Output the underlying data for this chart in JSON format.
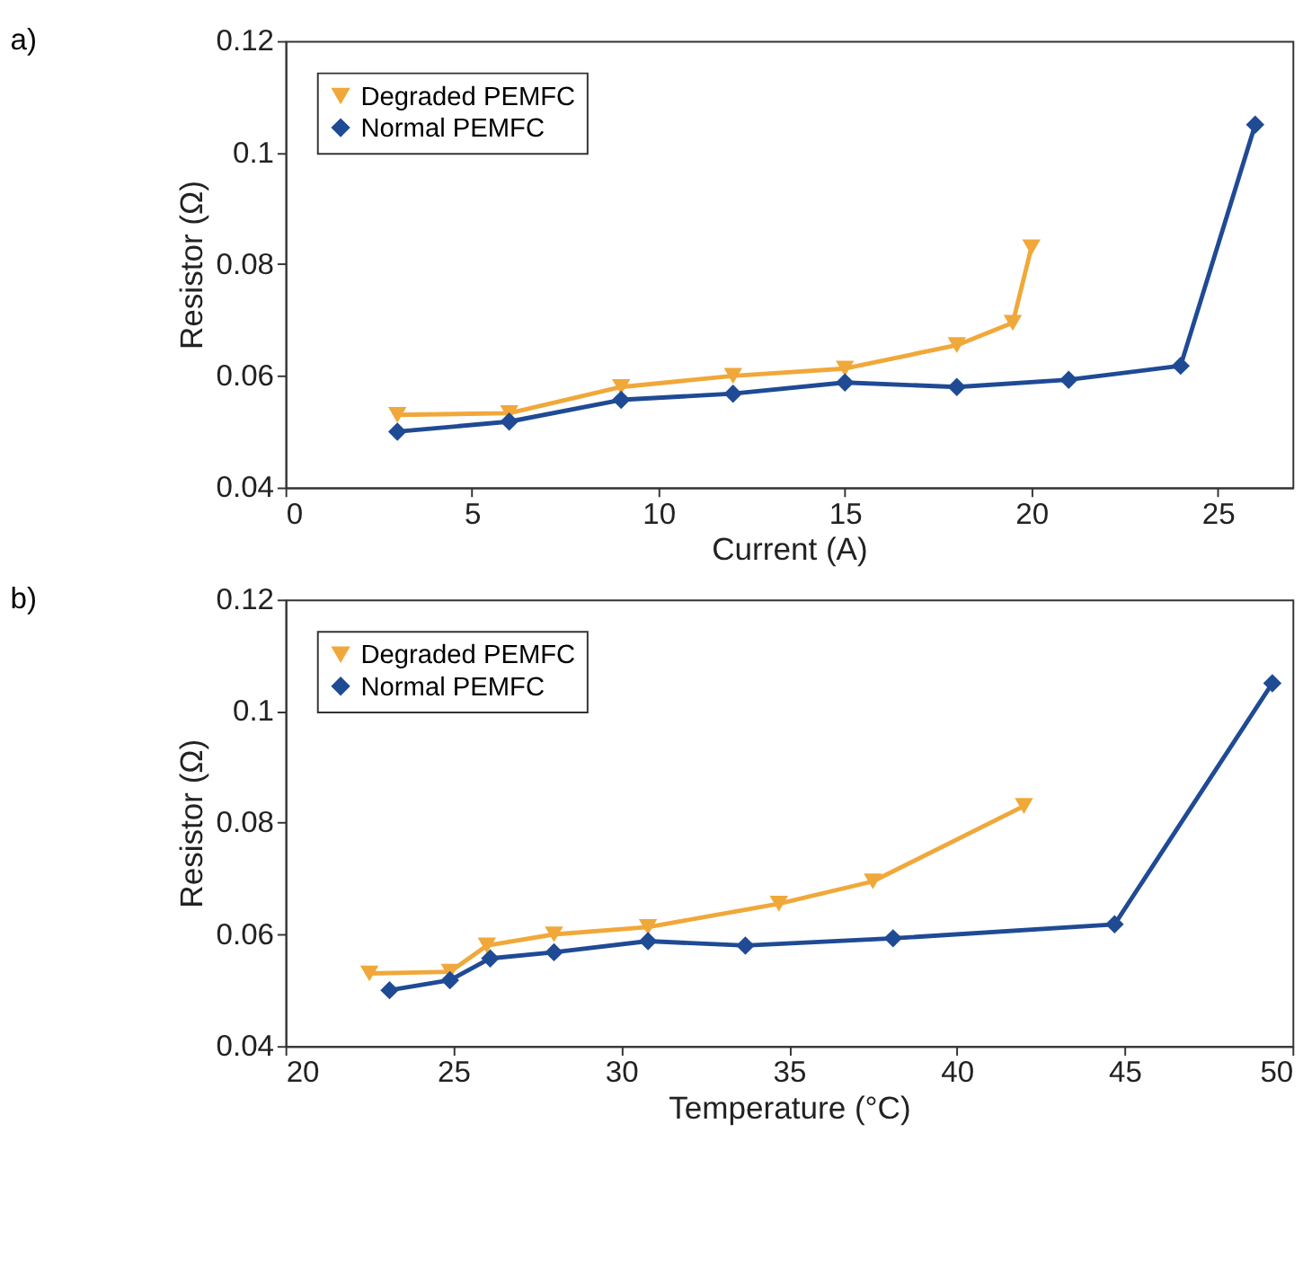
{
  "chart_data": [
    {
      "type": "line",
      "title": "a)",
      "xlabel": "Current  (A)",
      "ylabel": "Resistor (Ω)",
      "xlim": [
        0,
        27
      ],
      "xticks": [
        0,
        5,
        10,
        15,
        20,
        25
      ],
      "ylim": [
        0.04,
        0.12
      ],
      "yticks": [
        0.04,
        0.06,
        0.08,
        0.1,
        0.12
      ],
      "grid": false,
      "legend": "top left",
      "series": [
        {
          "name": "Degraded PEMFC",
          "color": "#f0a83a",
          "marker": "triangle",
          "x": [
            3,
            6,
            9,
            12,
            15,
            18,
            19.5,
            20
          ],
          "values": [
            0.053,
            0.0533,
            0.058,
            0.06,
            0.0613,
            0.0655,
            0.0695,
            0.083
          ]
        },
        {
          "name": "Normal PEMFC",
          "color": "#1f4a94",
          "marker": "diamond",
          "x": [
            3,
            6,
            9,
            12,
            15,
            18,
            21,
            24,
            26
          ],
          "values": [
            0.05,
            0.0518,
            0.0557,
            0.0568,
            0.0588,
            0.058,
            0.0593,
            0.0618,
            0.105
          ]
        }
      ]
    },
    {
      "type": "line",
      "title": "b)",
      "xlabel": "Temperature (°C)",
      "ylabel": "Resistor (Ω)",
      "xlim": [
        20,
        50
      ],
      "xticks": [
        20,
        25,
        30,
        35,
        40,
        45,
        50
      ],
      "ylim": [
        0.04,
        0.12
      ],
      "yticks": [
        0.04,
        0.06,
        0.08,
        0.1,
        0.12
      ],
      "grid": false,
      "legend": "top left",
      "series": [
        {
          "name": "Degraded PEMFC",
          "color": "#f0a83a",
          "marker": "triangle",
          "x": [
            22.5,
            24.9,
            26.0,
            28.0,
            30.8,
            34.7,
            37.5,
            42.0
          ],
          "values": [
            0.053,
            0.0533,
            0.058,
            0.06,
            0.0613,
            0.0655,
            0.0695,
            0.083
          ]
        },
        {
          "name": "Normal PEMFC",
          "color": "#1f4a94",
          "marker": "diamond",
          "x": [
            23.1,
            24.9,
            26.1,
            28.0,
            30.8,
            33.7,
            38.1,
            44.7,
            49.4
          ],
          "values": [
            0.05,
            0.0518,
            0.0557,
            0.0568,
            0.0588,
            0.058,
            0.0593,
            0.0618,
            0.105
          ]
        }
      ]
    }
  ]
}
